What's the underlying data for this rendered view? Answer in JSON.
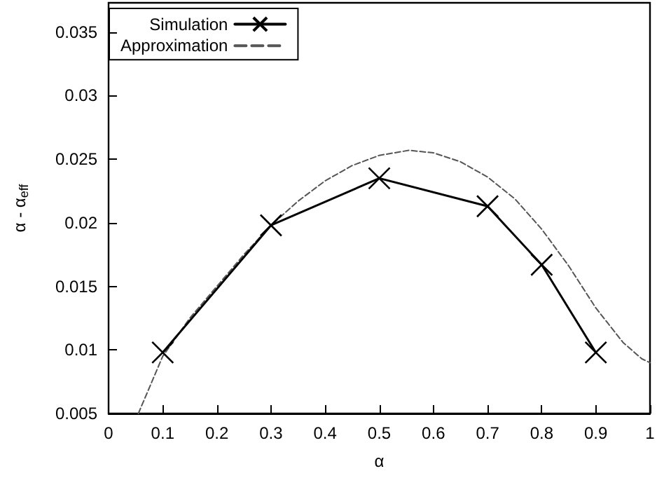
{
  "chart_data": {
    "type": "line",
    "xlabel": "α",
    "ylabel": "α - α$_{eff}$",
    "xlim": [
      0,
      1
    ],
    "xticks": [
      0,
      0.1,
      0.2,
      0.3,
      0.4,
      0.5,
      0.6,
      0.7,
      0.8,
      0.9,
      1
    ],
    "ylim": [
      0.005,
      0.0373
    ],
    "yticks": [
      0.005,
      0.01,
      0.015,
      0.02,
      0.025,
      0.03,
      0.035
    ],
    "grid": false,
    "legend": "top left",
    "series": [
      {
        "name": "Simulation",
        "color": "#000000",
        "marker": "cross",
        "line_style": "solid",
        "x": [
          0.1,
          0.3,
          0.5,
          0.7,
          0.8,
          0.9
        ],
        "values": [
          0.0098,
          0.0198,
          0.0235,
          0.0213,
          0.0167,
          0.0098
        ]
      },
      {
        "name": "Approximation",
        "color": "#555555",
        "marker": "none",
        "line_style": "dashed",
        "x": [
          0.055,
          0.1,
          0.15,
          0.2,
          0.25,
          0.3,
          0.35,
          0.4,
          0.45,
          0.5,
          0.555,
          0.6,
          0.65,
          0.7,
          0.75,
          0.8,
          0.85,
          0.9,
          0.95,
          0.985,
          1
        ],
        "values": [
          0.005,
          0.0095,
          0.0125,
          0.015,
          0.0175,
          0.0198,
          0.0217,
          0.0233,
          0.0245,
          0.0253,
          0.0257,
          0.0255,
          0.0248,
          0.0236,
          0.0219,
          0.0195,
          0.0166,
          0.0133,
          0.0106,
          0.0093,
          0.009
        ]
      }
    ]
  }
}
